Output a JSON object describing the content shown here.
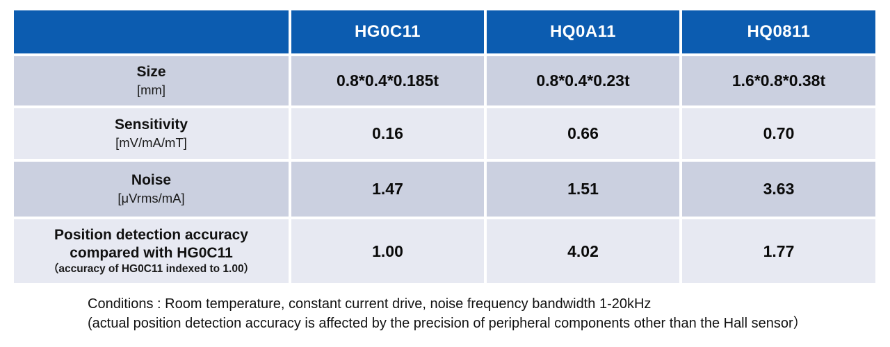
{
  "table": {
    "header": {
      "corner": "",
      "columns": [
        "HG0C11",
        "HQ0A11",
        "HQ0811"
      ]
    },
    "rows": [
      {
        "label": "Size",
        "unit": "[mm]",
        "values": [
          "0.8*0.4*0.185t",
          "0.8*0.4*0.23t",
          "1.6*0.8*0.38t"
        ]
      },
      {
        "label": "Sensitivity",
        "unit": "[mV/mA/mT]",
        "values": [
          "0.16",
          "0.66",
          "0.70"
        ]
      },
      {
        "label": "Noise",
        "unit": "[μVrms/mA]",
        "values": [
          "1.47",
          "1.51",
          "3.63"
        ]
      },
      {
        "label_line1": "Position detection accuracy",
        "label_line2": "compared with HG0C11",
        "note": "（accuracy of HG0C11 indexed to 1.00）",
        "values": [
          "1.00",
          "4.02",
          "1.77"
        ]
      }
    ]
  },
  "footer": {
    "line1": "Conditions : Room temperature, constant current drive, noise frequency bandwidth 1-20kHz",
    "line2": "(actual position detection accuracy is affected by the precision of peripheral components other than the Hall sensor）"
  },
  "colors": {
    "header_bg": "#0c5cb0",
    "header_text": "#ffffff",
    "row_dark_bg": "#cbd0e0",
    "row_light_bg": "#e7e9f2",
    "grid_line": "#ffffff",
    "text": "#111111"
  }
}
